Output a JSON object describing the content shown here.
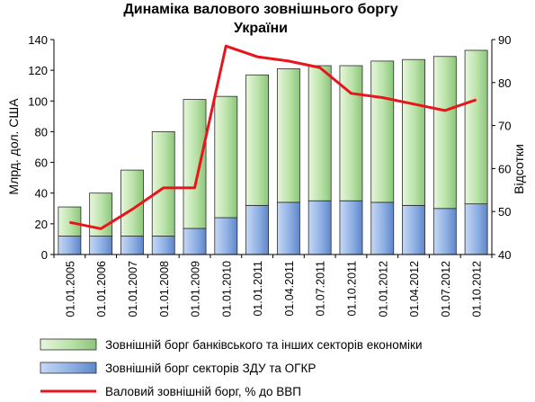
{
  "chart_data": {
    "type": "bar",
    "title": "Динаміка валового зовнішнього боргу України",
    "title_lines": [
      "Динаміка валового зовнішнього боргу",
      "України"
    ],
    "ylabel": "Млрд. дол. США",
    "y2label": "Відсотки",
    "ylim": [
      0,
      140
    ],
    "y_ticks": [
      "0",
      "20",
      "40",
      "60",
      "80",
      "100",
      "120",
      "140"
    ],
    "y2lim": [
      40,
      90
    ],
    "y2_ticks": [
      "40",
      "50",
      "60",
      "70",
      "80",
      "90"
    ],
    "grid": false,
    "legend_position": "bottom",
    "categories": [
      "01.01.2005",
      "01.01.2006",
      "01.01.2007",
      "01.01.2008",
      "01.01.2009",
      "01.01.2010",
      "01.01.2011",
      "01.04.2011",
      "01.07.2011",
      "01.10.2011",
      "01.01.2012",
      "01.04.2012",
      "01.07.2012",
      "01.10.2012"
    ],
    "series": [
      {
        "name": "Зовнішній борг секторів ЗДУ та ОГКР",
        "kind": "stacked-bar",
        "color": "#7a9fd9",
        "values": [
          12,
          12,
          12,
          12,
          17,
          24,
          32,
          34,
          35,
          35,
          34,
          32,
          30,
          33
        ]
      },
      {
        "name": "Зовнішній борг банківського та інших секторів економіки",
        "kind": "stacked-bar",
        "color": "#b8e0a8",
        "values": [
          19,
          28,
          43,
          68,
          84,
          79,
          85,
          87,
          88,
          88,
          92,
          95,
          99,
          100
        ]
      },
      {
        "name": "Валовий зовнішній борг, % до ВВП",
        "kind": "line",
        "axis": "right",
        "color": "#e8151b",
        "values": [
          47.5,
          46,
          50.5,
          55.5,
          55.5,
          88.5,
          86,
          85,
          83.5,
          77.5,
          76.5,
          75,
          73.5,
          76
        ]
      }
    ],
    "legend": [
      "Зовнішній борг банківського та інших секторів економіки",
      "Зовнішній борг секторів ЗДУ та ОГКР",
      "Валовий зовнішній борг, % до ВВП"
    ]
  }
}
